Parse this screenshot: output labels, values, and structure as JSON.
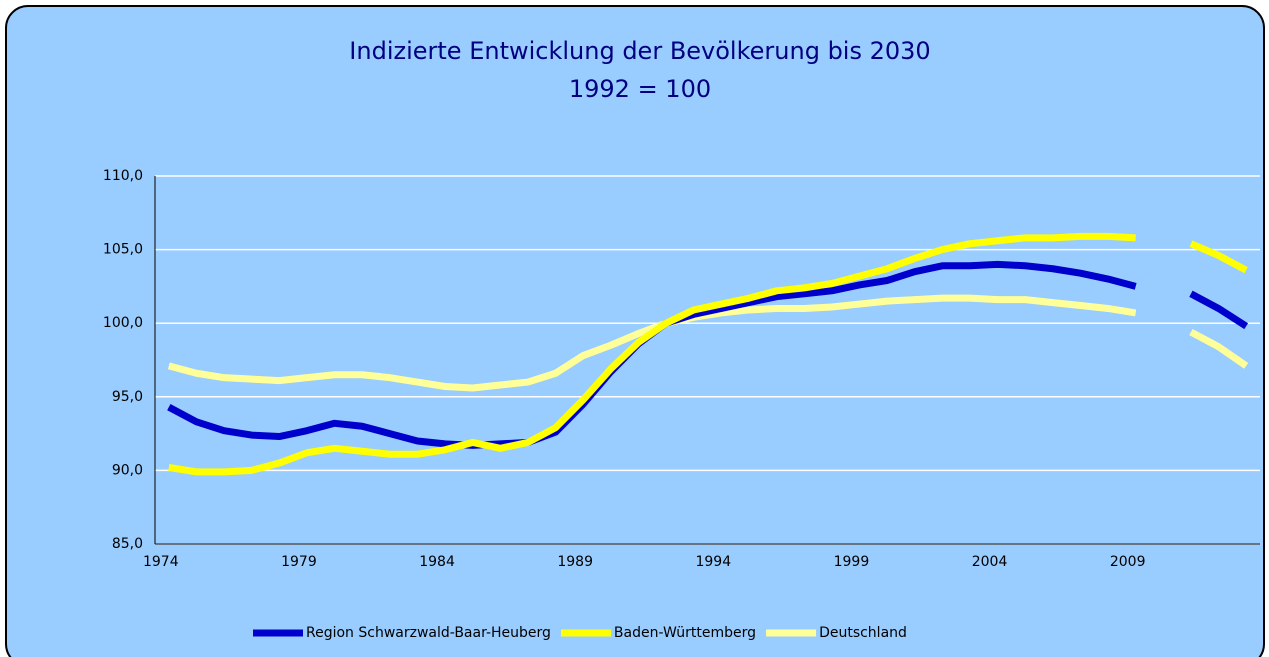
{
  "chart_data": {
    "type": "line",
    "title": "Indizierte Entwicklung der Bevölkerung bis 2030",
    "subtitle": "1992 = 100",
    "categories": [
      "1974",
      null,
      null,
      null,
      null,
      "1979",
      null,
      null,
      null,
      null,
      "1984",
      null,
      null,
      null,
      null,
      "1989",
      null,
      null,
      null,
      null,
      "1994",
      null,
      null,
      null,
      null,
      "1999",
      null,
      null,
      null,
      null,
      "2004",
      null,
      null,
      null,
      null,
      "2009",
      null,
      null,
      null,
      null
    ],
    "series": [
      {
        "name": "Region Schwarzwald-Baar-Heuberg",
        "color": "#0000cc",
        "values": [
          94.3,
          93.3,
          92.7,
          92.4,
          92.3,
          92.7,
          93.2,
          93.0,
          92.5,
          92.0,
          91.8,
          91.7,
          91.8,
          91.9,
          92.6,
          94.5,
          96.7,
          98.6,
          100.0,
          100.6,
          101.0,
          101.4,
          101.8,
          102.0,
          102.2,
          102.6,
          102.9,
          103.5,
          103.9,
          103.9,
          104.0,
          103.9,
          103.7,
          103.4,
          103.0,
          102.5,
          null,
          102.0,
          101.0,
          99.8
        ]
      },
      {
        "name": "Baden-Württemberg",
        "color": "#ffff00",
        "values": [
          90.2,
          89.9,
          89.9,
          90.0,
          90.5,
          91.2,
          91.5,
          91.3,
          91.1,
          91.1,
          91.4,
          91.9,
          91.5,
          91.9,
          92.9,
          94.8,
          96.9,
          98.7,
          100.0,
          100.9,
          101.3,
          101.7,
          102.2,
          102.4,
          102.7,
          103.2,
          103.7,
          104.4,
          105.0,
          105.4,
          105.6,
          105.8,
          105.8,
          105.9,
          105.9,
          105.8,
          null,
          105.4,
          104.6,
          103.6
        ]
      },
      {
        "name": "Deutschland",
        "color": "#ffff99",
        "values": [
          97.1,
          96.6,
          96.3,
          96.2,
          96.1,
          96.3,
          96.5,
          96.5,
          96.3,
          96.0,
          95.7,
          95.6,
          95.8,
          96.0,
          96.6,
          97.8,
          98.5,
          99.3,
          100.0,
          100.4,
          100.7,
          100.9,
          101.0,
          101.0,
          101.1,
          101.3,
          101.5,
          101.6,
          101.7,
          101.7,
          101.6,
          101.6,
          101.4,
          101.2,
          101.0,
          100.7,
          null,
          99.4,
          98.4,
          97.1
        ]
      }
    ],
    "ylim": [
      85,
      110
    ],
    "yticks": [
      {
        "value": 85,
        "label": "85,0"
      },
      {
        "value": 90,
        "label": "90,0"
      },
      {
        "value": 95,
        "label": "95,0"
      },
      {
        "value": 100,
        "label": "100,0"
      },
      {
        "value": 105,
        "label": "105,0"
      },
      {
        "value": 110,
        "label": "110,0"
      }
    ],
    "grid": true,
    "legend": "bottom"
  }
}
